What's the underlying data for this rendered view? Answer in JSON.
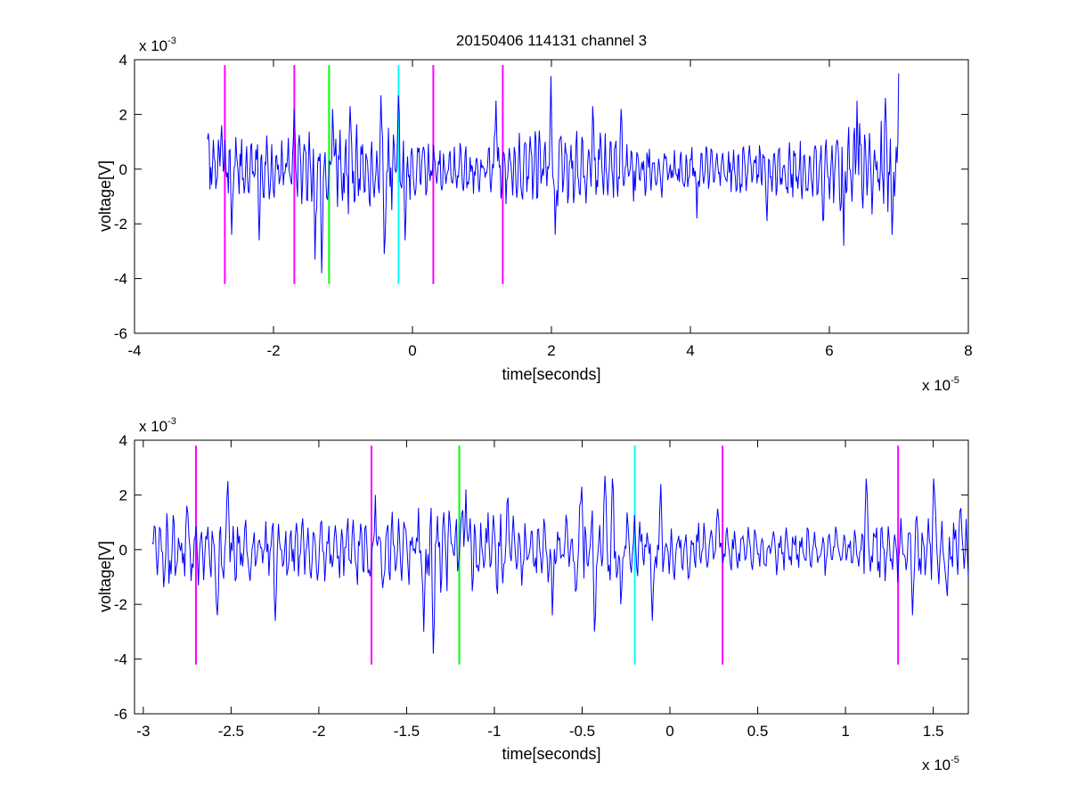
{
  "figure": {
    "title": "20150406 114131 channel 3",
    "background": "#ffffff"
  },
  "chart_data": [
    {
      "type": "line",
      "title": "20150406 114131 channel 3",
      "xlabel": "time[seconds]",
      "ylabel": "voltage[V]",
      "x_multiplier_label": "x 10",
      "x_multiplier_exp": "-5",
      "y_multiplier_label": "x 10",
      "y_multiplier_exp": "-3",
      "x_units": "1e-5 s",
      "y_units": "1e-3 V",
      "xlim": [
        -4,
        8
      ],
      "ylim": [
        -6,
        4
      ],
      "xticks": [
        -4,
        -2,
        0,
        2,
        4,
        6,
        8
      ],
      "xtick_labels": [
        "-4",
        "-2",
        "0",
        "2",
        "4",
        "6",
        "8"
      ],
      "yticks": [
        -6,
        -4,
        -2,
        0,
        2,
        4
      ],
      "ytick_labels": [
        "-6",
        "-4",
        "-2",
        "0",
        "2",
        "4"
      ],
      "grid": false,
      "series": [
        {
          "color": "#0000ff",
          "x_range": [
            -2.95,
            7.0
          ],
          "envelope": [
            [
              -2.95,
              1.2
            ],
            [
              -2.7,
              1.2
            ],
            [
              -2.3,
              1.1
            ],
            [
              -2.0,
              1.0
            ],
            [
              -1.6,
              1.3
            ],
            [
              -1.2,
              1.5
            ],
            [
              -0.8,
              1.4
            ],
            [
              -0.4,
              1.4
            ],
            [
              0.0,
              1.0
            ],
            [
              0.5,
              0.8
            ],
            [
              1.0,
              0.9
            ],
            [
              1.5,
              1.2
            ],
            [
              2.0,
              1.3
            ],
            [
              2.5,
              1.2
            ],
            [
              3.0,
              1.1
            ],
            [
              3.5,
              0.9
            ],
            [
              4.0,
              0.8
            ],
            [
              4.5,
              0.8
            ],
            [
              5.0,
              0.8
            ],
            [
              5.5,
              1.1
            ],
            [
              6.0,
              1.4
            ],
            [
              6.5,
              1.5
            ],
            [
              7.0,
              1.5
            ]
          ],
          "extremes": [
            [
              -2.75,
              1.6
            ],
            [
              -2.6,
              -2.4
            ],
            [
              -2.2,
              -2.6
            ],
            [
              -1.7,
              2.2
            ],
            [
              -1.4,
              -3.3
            ],
            [
              -1.3,
              -3.8
            ],
            [
              -1.15,
              2.2
            ],
            [
              -0.9,
              2.3
            ],
            [
              -0.45,
              2.7
            ],
            [
              -0.4,
              -3.1
            ],
            [
              -0.2,
              2.7
            ],
            [
              -0.1,
              -2.6
            ],
            [
              1.2,
              2.5
            ],
            [
              2.0,
              3.4
            ],
            [
              2.05,
              -2.4
            ],
            [
              2.6,
              2.3
            ],
            [
              3.0,
              2.2
            ],
            [
              4.1,
              -1.8
            ],
            [
              5.1,
              -1.9
            ],
            [
              5.9,
              -1.9
            ],
            [
              6.2,
              -2.8
            ],
            [
              6.4,
              2.5
            ],
            [
              6.8,
              2.6
            ],
            [
              6.9,
              -2.4
            ],
            [
              7.0,
              3.5
            ]
          ]
        }
      ],
      "markers": [
        {
          "x": -2.7,
          "y_range": [
            -4.2,
            3.8
          ],
          "color": "#ff00ff"
        },
        {
          "x": -1.7,
          "y_range": [
            -4.2,
            3.8
          ],
          "color": "#ff00ff"
        },
        {
          "x": -1.2,
          "y_range": [
            -4.2,
            3.8
          ],
          "color": "#00ff00"
        },
        {
          "x": -0.2,
          "y_range": [
            -4.2,
            3.8
          ],
          "color": "#00ffff"
        },
        {
          "x": 0.3,
          "y_range": [
            -4.2,
            3.8
          ],
          "color": "#ff00ff"
        },
        {
          "x": 1.3,
          "y_range": [
            -4.2,
            3.8
          ],
          "color": "#ff00ff"
        }
      ]
    },
    {
      "type": "line",
      "title": "",
      "xlabel": "time[seconds]",
      "ylabel": "voltage[V]",
      "x_multiplier_label": "x 10",
      "x_multiplier_exp": "-5",
      "y_multiplier_label": "x 10",
      "y_multiplier_exp": "-3",
      "x_units": "1e-5 s",
      "y_units": "1e-3 V",
      "xlim": [
        -3.05,
        1.7
      ],
      "ylim": [
        -6,
        4
      ],
      "xticks": [
        -3,
        -2.5,
        -2,
        -1.5,
        -1,
        -0.5,
        0,
        0.5,
        1,
        1.5
      ],
      "xtick_labels": [
        "-3",
        "-2.5",
        "-2",
        "-1.5",
        "-1",
        "-0.5",
        "0",
        "0.5",
        "1",
        "1.5"
      ],
      "yticks": [
        -6,
        -4,
        -2,
        0,
        2,
        4
      ],
      "ytick_labels": [
        "-6",
        "-4",
        "-2",
        "0",
        "2",
        "4"
      ],
      "grid": false,
      "series": [
        {
          "color": "#0000ff",
          "x_range": [
            -2.95,
            1.7
          ],
          "envelope": [
            [
              -2.95,
              1.2
            ],
            [
              -2.7,
              1.2
            ],
            [
              -2.3,
              1.1
            ],
            [
              -2.0,
              1.0
            ],
            [
              -1.6,
              1.3
            ],
            [
              -1.2,
              1.5
            ],
            [
              -0.8,
              1.4
            ],
            [
              -0.4,
              1.4
            ],
            [
              0.0,
              1.0
            ],
            [
              0.5,
              0.8
            ],
            [
              1.0,
              0.9
            ],
            [
              1.5,
              1.2
            ],
            [
              1.7,
              1.2
            ]
          ],
          "extremes": [
            [
              -2.93,
              0.8
            ],
            [
              -2.75,
              1.6
            ],
            [
              -2.58,
              -2.4
            ],
            [
              -2.52,
              2.5
            ],
            [
              -2.25,
              -2.6
            ],
            [
              -1.68,
              2.0
            ],
            [
              -1.4,
              -3.0
            ],
            [
              -1.35,
              -3.8
            ],
            [
              -1.16,
              2.2
            ],
            [
              -0.92,
              1.9
            ],
            [
              -0.67,
              -2.4
            ],
            [
              -0.5,
              2.3
            ],
            [
              -0.43,
              -3.0
            ],
            [
              -0.37,
              2.7
            ],
            [
              -0.33,
              2.6
            ],
            [
              -0.28,
              -2.0
            ],
            [
              -0.1,
              -2.6
            ],
            [
              -0.05,
              2.4
            ],
            [
              0.27,
              1.5
            ],
            [
              1.12,
              2.6
            ],
            [
              1.38,
              -2.4
            ],
            [
              1.5,
              2.6
            ],
            [
              1.58,
              -1.7
            ],
            [
              1.65,
              1.4
            ],
            [
              1.7,
              -1.0
            ]
          ]
        }
      ],
      "markers": [
        {
          "x": -2.7,
          "y_range": [
            -4.2,
            3.8
          ],
          "color": "#ff00ff"
        },
        {
          "x": -1.7,
          "y_range": [
            -4.2,
            3.8
          ],
          "color": "#ff00ff"
        },
        {
          "x": -1.2,
          "y_range": [
            -4.2,
            3.8
          ],
          "color": "#00ff00"
        },
        {
          "x": -0.2,
          "y_range": [
            -4.2,
            3.8
          ],
          "color": "#00ffff"
        },
        {
          "x": 0.3,
          "y_range": [
            -4.2,
            3.8
          ],
          "color": "#ff00ff"
        },
        {
          "x": 1.3,
          "y_range": [
            -4.2,
            3.8
          ],
          "color": "#ff00ff"
        }
      ]
    }
  ]
}
